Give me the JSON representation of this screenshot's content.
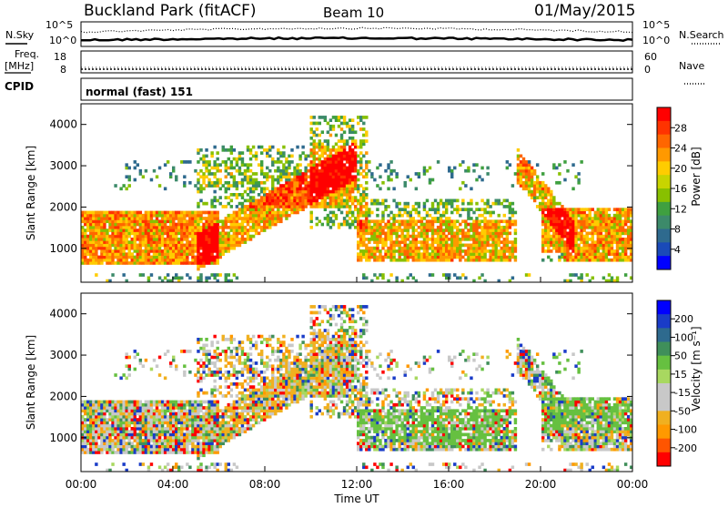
{
  "header": {
    "station": "Buckland Park (fitACF)",
    "beam": "Beam 10",
    "date": "01/May/2015"
  },
  "noise_panel": {
    "left_label": "N.Sky",
    "right_label": "N.Search",
    "y_ticks": [
      "10^5",
      "10^0"
    ]
  },
  "freq_panel": {
    "left_label_1": "Freq.",
    "left_label_2": "[MHz]",
    "left_ticks": [
      "18",
      "8"
    ],
    "right_label": "Nave",
    "right_ticks": [
      "60",
      "0"
    ]
  },
  "cpid": {
    "label": "CPID",
    "value": "normal (fast) 151"
  },
  "chart_data": [
    {
      "type": "heatmap",
      "name": "power",
      "ylabel": "Slant Range [km]",
      "xlabel": "",
      "ylim": [
        180,
        4500
      ],
      "y_ticks": [
        "1000",
        "2000",
        "3000",
        "4000"
      ],
      "x_ticks": [],
      "colorbar": {
        "label": "Power [dB]",
        "ticks": [
          "28",
          "24",
          "20",
          "16",
          "12",
          "8",
          "4"
        ],
        "colors": [
          "#ff0000",
          "#ff3300",
          "#ff6600",
          "#ff9900",
          "#ffcc00",
          "#c8d400",
          "#88c000",
          "#3fa040",
          "#3c8a6a",
          "#2e6a8e",
          "#1a4ab8",
          "#0000ff"
        ]
      },
      "regions_description": [
        {
          "from_hour": 0,
          "to_hour": 6,
          "range_km": [
            600,
            1900
          ],
          "level_db": 24
        },
        {
          "from_hour": 6,
          "to_hour": 11,
          "range_km": [
            900,
            2600
          ],
          "level_db": 20
        },
        {
          "from_hour": 12,
          "to_hour": 19,
          "range_km": [
            700,
            1700
          ],
          "level_db": 22
        },
        {
          "from_hour": 20,
          "to_hour": 24,
          "range_km": [
            700,
            2000
          ],
          "level_db": 24
        }
      ]
    },
    {
      "type": "heatmap",
      "name": "velocity",
      "ylabel": "Slant Range [km]",
      "xlabel": "Time UT",
      "ylim": [
        180,
        4500
      ],
      "y_ticks": [
        "1000",
        "2000",
        "3000",
        "4000"
      ],
      "x_ticks": [
        "00:00",
        "04:00",
        "08:00",
        "12:00",
        "16:00",
        "20:00",
        "00:00"
      ],
      "colorbar": {
        "label": "Velocity [m s⁻¹]",
        "ticks": [
          "200",
          "100",
          "50",
          "15",
          "-15",
          "-50",
          "-100",
          "-200"
        ],
        "colors": [
          "#0000ff",
          "#1a3cc8",
          "#2e6a8e",
          "#3f8f5a",
          "#66c040",
          "#a8d860",
          "#c8c8c8",
          "#c8c8c8",
          "#f0b020",
          "#ff9900",
          "#ff5500",
          "#ff0000"
        ]
      }
    }
  ]
}
